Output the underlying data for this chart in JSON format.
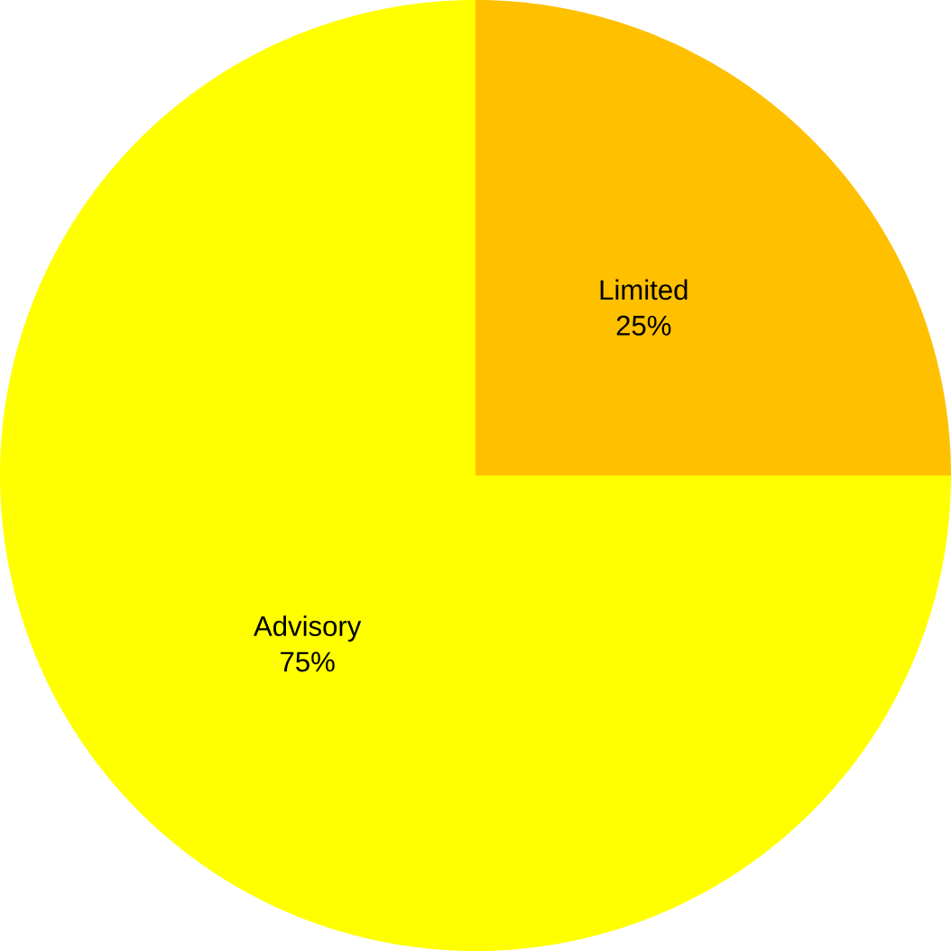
{
  "chart_data": {
    "type": "pie",
    "categories": [
      "Limited",
      "Advisory"
    ],
    "values": [
      25,
      75
    ],
    "colors": [
      "#ffc000",
      "#ffff00"
    ],
    "value_labels": [
      "25%",
      "75%"
    ]
  }
}
